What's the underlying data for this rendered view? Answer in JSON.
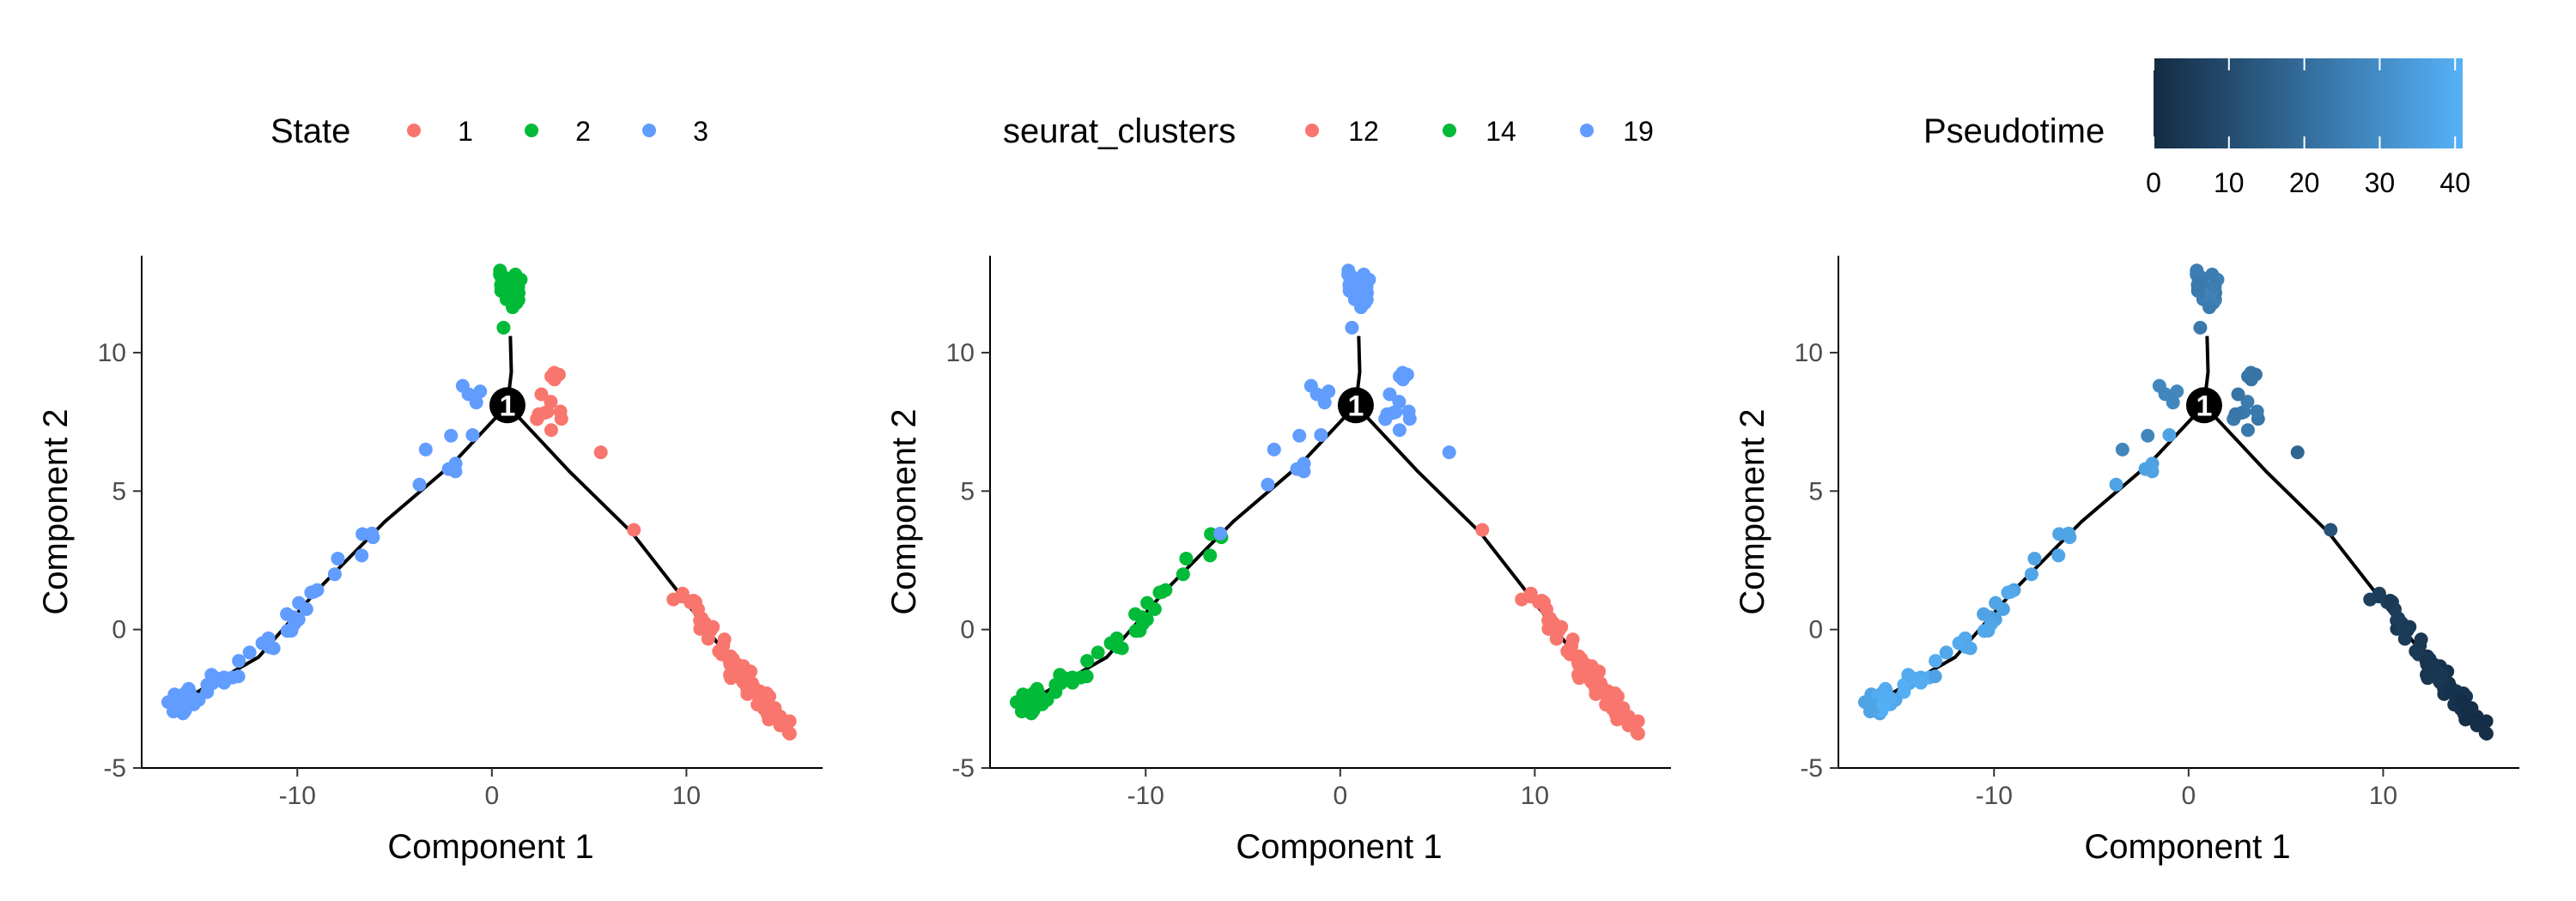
{
  "chart_data": [
    {
      "type": "scatter",
      "legend": {
        "title": "State",
        "kind": "discrete",
        "position": "top",
        "entries": [
          {
            "label": "1",
            "color": "#F8766D"
          },
          {
            "label": "2",
            "color": "#00BA38"
          },
          {
            "label": "3",
            "color": "#619CFF"
          }
        ]
      }
    },
    {
      "type": "scatter",
      "legend": {
        "title": "seurat_clusters",
        "kind": "discrete",
        "position": "top",
        "entries": [
          {
            "label": "12",
            "color": "#F8766D"
          },
          {
            "label": "14",
            "color": "#00BA38"
          },
          {
            "label": "19",
            "color": "#619CFF"
          }
        ]
      }
    },
    {
      "type": "scatter",
      "legend": {
        "title": "Pseudotime",
        "kind": "continuous",
        "position": "top",
        "range": [
          0,
          41
        ],
        "ticks": [
          0,
          10,
          20,
          30,
          40
        ],
        "colors": [
          "#132B43",
          "#56B1F7"
        ]
      }
    }
  ],
  "shared": {
    "xlabel": "Component 1",
    "ylabel": "Component 2",
    "xlim": [
      -18,
      17
    ],
    "ylim": [
      -5,
      13.5
    ],
    "xticks": [
      -10,
      0,
      10
    ],
    "yticks": [
      -5,
      0,
      5,
      10
    ],
    "branch_point": {
      "x": 0.8,
      "y": 8.1,
      "label": "1"
    },
    "trajectory": {
      "trunk": [
        [
          -16.5,
          -2.8
        ],
        [
          -12,
          -1.0
        ],
        [
          -9,
          1.4
        ],
        [
          -5.5,
          3.9
        ],
        [
          -2,
          6.0
        ],
        [
          0.8,
          8.1
        ]
      ],
      "stem": [
        [
          0.8,
          8.1
        ],
        [
          1.0,
          9.3
        ],
        [
          0.95,
          10.6
        ]
      ],
      "right": [
        [
          0.8,
          8.1
        ],
        [
          4.0,
          5.7
        ],
        [
          7.2,
          3.5
        ],
        [
          10.2,
          0.8
        ],
        [
          12.8,
          -1.6
        ],
        [
          15.0,
          -3.6
        ]
      ]
    }
  }
}
